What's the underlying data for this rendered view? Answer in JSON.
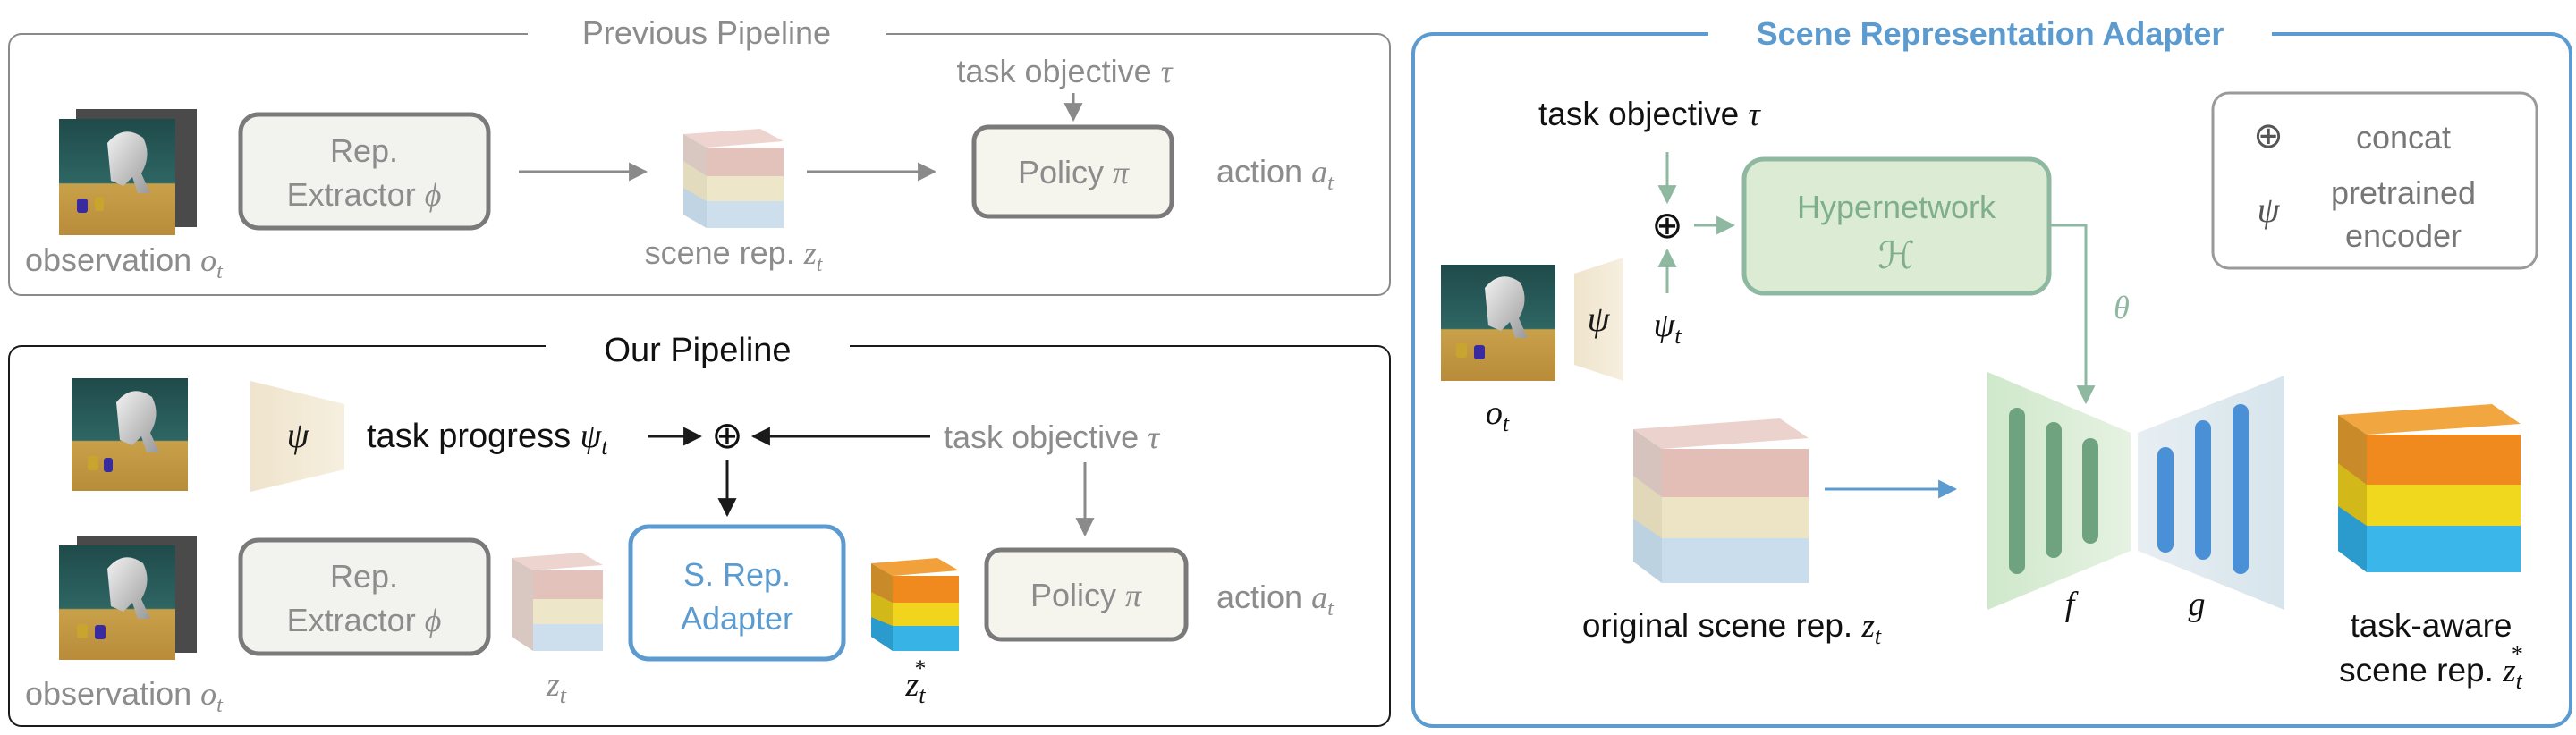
{
  "colors": {
    "gray_text": "#8c8c8c",
    "box_stroke_gray": "#7a7a7a",
    "adapter_blue": "#5b9bd0",
    "hyper_green": "#8fb8a0",
    "hyper_fill": "#dcecd4",
    "psi_fill": "#f0e6cf"
  },
  "previous": {
    "title": "Previous Pipeline",
    "observation_label": "observation",
    "observation_sym": "o",
    "observation_sub": "t",
    "extractor_line1": "Rep.",
    "extractor_line2": "Extractor",
    "extractor_sym": "ϕ",
    "scene_label": "scene rep.",
    "scene_sym": "z",
    "scene_sub": "t",
    "task_label": "task objective",
    "task_sym": "τ",
    "policy_label": "Policy",
    "policy_sym": "π",
    "action_label": "action",
    "action_sym": "a",
    "action_sub": "t"
  },
  "ours": {
    "title": "Our Pipeline",
    "psi_sym": "ψ",
    "progress_label": "task progress",
    "progress_sym": "ψ",
    "progress_sub": "t",
    "concat_sym": "⊕",
    "task_label": "task objective",
    "task_sym": "τ",
    "observation_label": "observation",
    "observation_sym": "o",
    "observation_sub": "t",
    "extractor_line1": "Rep.",
    "extractor_line2": "Extractor",
    "extractor_sym": "ϕ",
    "z_sym": "z",
    "z_sub": "t",
    "adapter_line1": "S. Rep.",
    "adapter_line2": "Adapter",
    "zstar_sym": "z",
    "zstar_sub": "t",
    "zstar_sup": "*",
    "policy_label": "Policy",
    "policy_sym": "π",
    "action_label": "action",
    "action_sym": "a",
    "action_sub": "t"
  },
  "adapter": {
    "title": "Scene Representation Adapter",
    "task_label": "task objective",
    "task_sym": "τ",
    "concat_sym": "⊕",
    "hyper_label": "Hypernetwork",
    "hyper_sym": "ℋ",
    "psi_sym": "ψ",
    "psi_t_sym": "ψ",
    "psi_t_sub": "t",
    "o_sym": "o",
    "o_sub": "t",
    "theta_sym": "θ",
    "orig_label": "original scene rep.",
    "orig_sym": "z",
    "orig_sub": "t",
    "f_sym": "f",
    "g_sym": "g",
    "aware_line1": "task-aware",
    "aware_line2": "scene rep.",
    "aware_sym": "z",
    "aware_sub": "t",
    "aware_sup": "*",
    "legend_concat_sym": "⊕",
    "legend_concat_label": "concat",
    "legend_psi_sym": "ψ",
    "legend_psi_line1": "pretrained",
    "legend_psi_line2": "encoder"
  }
}
